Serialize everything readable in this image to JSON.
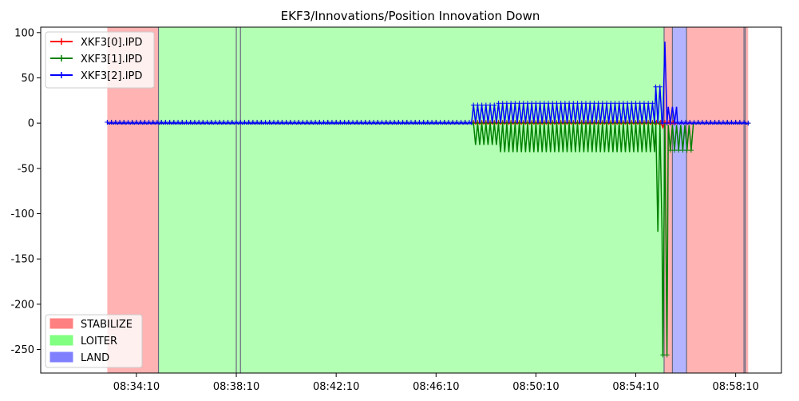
{
  "chart_data": {
    "type": "line",
    "title": "EKF3/Innovations/Position Innovation Down",
    "xlabel": "",
    "ylabel": "",
    "x_unit": "seconds since 08:33:00",
    "xlim": [
      -160,
      1620
    ],
    "ylim": [
      -276,
      106
    ],
    "x_ticks": [
      {
        "value": 70,
        "label": "08:34:10"
      },
      {
        "value": 310,
        "label": "08:38:10"
      },
      {
        "value": 550,
        "label": "08:42:10"
      },
      {
        "value": 790,
        "label": "08:46:10"
      },
      {
        "value": 1030,
        "label": "08:50:10"
      },
      {
        "value": 1270,
        "label": "08:54:10"
      },
      {
        "value": 1510,
        "label": "08:58:10"
      }
    ],
    "y_ticks": [
      100,
      50,
      0,
      -50,
      -100,
      -150,
      -200,
      -250
    ],
    "modes": [
      {
        "name": "STABILIZE",
        "start": 0,
        "end": 123,
        "color": "#ff8080"
      },
      {
        "name": "LOITER",
        "start": 123,
        "end": 1338,
        "color": "#80ff80"
      },
      {
        "name": "STABILIZE",
        "start": 1338,
        "end": 1358,
        "color": "#ff8080"
      },
      {
        "name": "LAND",
        "start": 1358,
        "end": 1392,
        "color": "#8080ff"
      },
      {
        "name": "STABILIZE",
        "start": 1392,
        "end": 1540,
        "color": "#ff8080"
      }
    ],
    "mode_boundaries": [
      123,
      310,
      320,
      1338,
      1358,
      1392,
      1530,
      1533
    ],
    "legend_modes": [
      {
        "name": "STABILIZE",
        "color": "#ff8080"
      },
      {
        "name": "LOITER",
        "color": "#80ff80"
      },
      {
        "name": "LAND",
        "color": "#8080ff"
      }
    ],
    "series": [
      {
        "name": "XKF3[0].IPD",
        "color": "#ff0000",
        "segments": [
          {
            "x0": 0,
            "x1": 1330,
            "center": 0,
            "amp": 1
          },
          {
            "x0": 1330,
            "x1": 1345,
            "center": -2,
            "amp": 3
          },
          {
            "x0": 1345,
            "x1": 1540,
            "center": 0,
            "amp": 1
          }
        ]
      },
      {
        "name": "XKF3[1].IPD",
        "color": "#008000",
        "segments": [
          {
            "x0": 0,
            "x1": 880,
            "center": 0,
            "amp": 1
          },
          {
            "x0": 880,
            "x1": 940,
            "center": -12,
            "amp": 12
          },
          {
            "x0": 940,
            "x1": 1318,
            "center": -16,
            "amp": 16
          },
          {
            "x0": 1318,
            "x1": 1335,
            "center": -60,
            "amp": 60
          },
          {
            "x0": 1335,
            "x1": 1348,
            "center": -128,
            "amp": 128
          },
          {
            "x0": 1348,
            "x1": 1410,
            "center": -16,
            "amp": 14
          },
          {
            "x0": 1410,
            "x1": 1540,
            "center": 0,
            "amp": 1
          }
        ]
      },
      {
        "name": "XKF3[2].IPD",
        "color": "#0000ff",
        "segments": [
          {
            "x0": 0,
            "x1": 880,
            "center": 0,
            "amp": 1
          },
          {
            "x0": 880,
            "x1": 940,
            "center": 10,
            "amp": 10
          },
          {
            "x0": 940,
            "x1": 1318,
            "center": 11,
            "amp": 11
          },
          {
            "x0": 1318,
            "x1": 1335,
            "center": 20,
            "amp": 20
          },
          {
            "x0": 1335,
            "x1": 1348,
            "center": 45,
            "amp": 45
          },
          {
            "x0": 1348,
            "x1": 1370,
            "center": 9,
            "amp": 9
          },
          {
            "x0": 1370,
            "x1": 1540,
            "center": 0,
            "amp": 1
          }
        ]
      }
    ],
    "grid": false,
    "series_legend_position": "upper-left",
    "mode_legend_position": "lower-left"
  }
}
